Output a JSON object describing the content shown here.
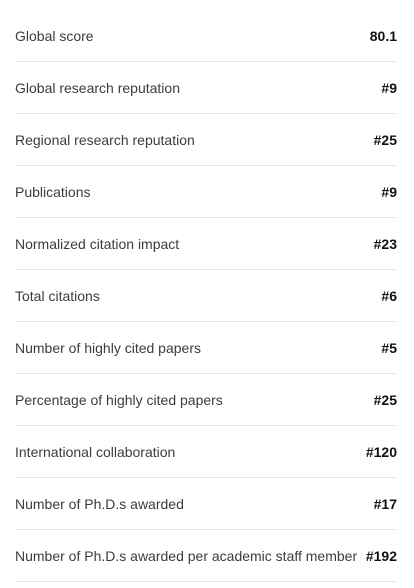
{
  "rows": [
    {
      "label": "Global score",
      "value": "80.1"
    },
    {
      "label": "Global research reputation",
      "value": "#9"
    },
    {
      "label": "Regional research reputation",
      "value": "#25"
    },
    {
      "label": "Publications",
      "value": "#9"
    },
    {
      "label": "Normalized citation impact",
      "value": "#23"
    },
    {
      "label": "Total citations",
      "value": "#6"
    },
    {
      "label": "Number of highly cited papers",
      "value": "#5"
    },
    {
      "label": "Percentage of highly cited papers",
      "value": "#25"
    },
    {
      "label": "International collaboration",
      "value": "#120"
    },
    {
      "label": "Number of Ph.D.s awarded",
      "value": "#17"
    },
    {
      "label": "Number of Ph.D.s awarded per academic staff member",
      "value": "#192"
    }
  ]
}
